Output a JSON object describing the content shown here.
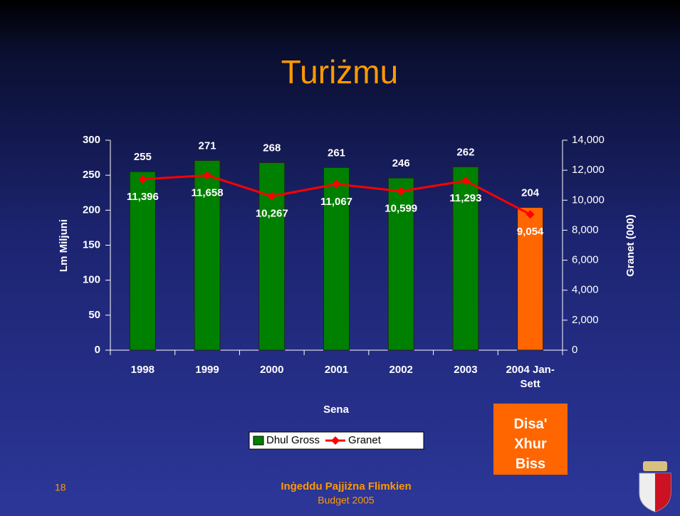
{
  "chart_data": {
    "type": "bar_line",
    "title": "Turiżmu",
    "categories": [
      "1998",
      "1999",
      "2000",
      "2001",
      "2002",
      "2003",
      "2004 Jan-Sett"
    ],
    "series": [
      {
        "name": "Dhul Gross",
        "type": "bar",
        "color": "#008000",
        "colors": [
          "#008000",
          "#008000",
          "#008000",
          "#008000",
          "#008000",
          "#008000",
          "#ff6600"
        ],
        "values": [
          255,
          271,
          268,
          261,
          246,
          262,
          204
        ]
      },
      {
        "name": "Granet",
        "type": "line",
        "axis": "y2",
        "color": "#ff0000",
        "values": [
          11396,
          11658,
          10267,
          11067,
          10599,
          11293,
          9054
        ],
        "value_labels": [
          "11,396",
          "11,658",
          "10,267",
          "11,067",
          "10,599",
          "11,293",
          "9,054"
        ]
      }
    ],
    "ylabel": "Lm Miljuni",
    "y2label": "Granet (000)",
    "xlabel": "Sena",
    "ylim": [
      0,
      300
    ],
    "yticks": [
      0,
      50,
      100,
      150,
      200,
      250,
      300
    ],
    "y2lim": [
      0,
      14000
    ],
    "y2ticks": [
      0,
      {
        "value": 2000,
        "label": "2,000"
      },
      {
        "value": 4000,
        "label": "4,000"
      },
      {
        "value": 6000,
        "label": "6,000"
      },
      {
        "value": 8000,
        "label": "8,000"
      },
      {
        "value": 10000,
        "label": "10,000"
      },
      {
        "value": 12000,
        "label": "12,000"
      },
      {
        "value": 14000,
        "label": "14,000"
      }
    ],
    "legend": "bottom",
    "note": "Disa' Xhur Biss"
  },
  "footer": {
    "page": "18",
    "slogan": "Inġeddu Pajjiżna Flimkien",
    "budget": "Budget 2005"
  }
}
